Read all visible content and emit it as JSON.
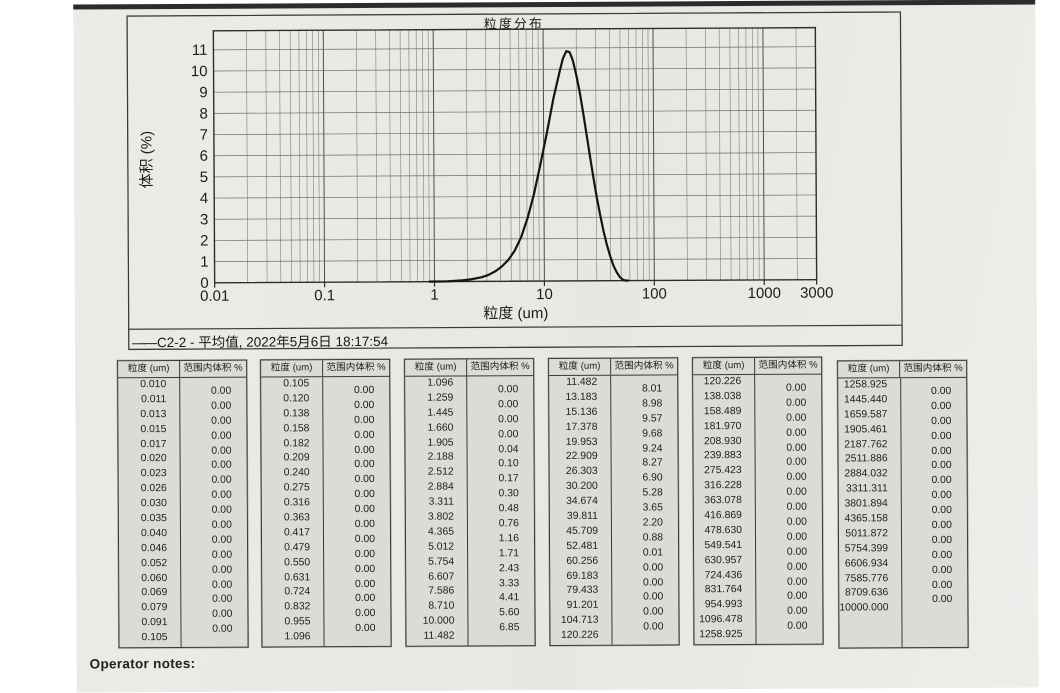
{
  "page": {
    "operator_notes_label": "Operator notes:"
  },
  "chart_data": {
    "type": "line",
    "title": "粒度分布",
    "xlabel": "粒度 (um)",
    "ylabel": "体积 (%)",
    "x_scale": "log",
    "xlim": [
      0.01,
      3000
    ],
    "ylim": [
      0,
      11.9
    ],
    "x_tick_labels": [
      "0.01",
      "0.1",
      "1",
      "10",
      "100",
      "1000",
      "3000"
    ],
    "y_ticks": [
      0,
      1,
      2,
      3,
      4,
      5,
      6,
      7,
      8,
      9,
      10,
      11
    ],
    "grid": "log-minor vertical + integer horizontal",
    "legend_dash": "——",
    "legend_text": "C2-2 - 平均值, 2022年5月6日 18:17:54",
    "series": [
      {
        "name": "C2-2 - 平均值",
        "points": [
          [
            0.9,
            0
          ],
          [
            1.3,
            0.01
          ],
          [
            1.8,
            0.05
          ],
          [
            2.2,
            0.11
          ],
          [
            2.7,
            0.2
          ],
          [
            3.1,
            0.3
          ],
          [
            3.6,
            0.48
          ],
          [
            4.1,
            0.7
          ],
          [
            4.7,
            1.0
          ],
          [
            5.4,
            1.45
          ],
          [
            6.2,
            2.1
          ],
          [
            7.1,
            3.0
          ],
          [
            8.1,
            4.1
          ],
          [
            9.3,
            5.5
          ],
          [
            10.7,
            7.0
          ],
          [
            12.3,
            8.6
          ],
          [
            14.1,
            9.9
          ],
          [
            15.1,
            10.5
          ],
          [
            16.2,
            10.85
          ],
          [
            17.4,
            10.8
          ],
          [
            18.6,
            10.4
          ],
          [
            20,
            9.7
          ],
          [
            21.4,
            8.9
          ],
          [
            23,
            7.9
          ],
          [
            24.6,
            6.9
          ],
          [
            26.3,
            5.9
          ],
          [
            28.2,
            4.9
          ],
          [
            30.2,
            3.95
          ],
          [
            32.4,
            3.1
          ],
          [
            34.7,
            2.35
          ],
          [
            37.2,
            1.7
          ],
          [
            39.8,
            1.15
          ],
          [
            42.7,
            0.7
          ],
          [
            45.7,
            0.38
          ],
          [
            49,
            0.15
          ],
          [
            52,
            0.04
          ],
          [
            55,
            0.005
          ],
          [
            58,
            0
          ]
        ]
      }
    ]
  },
  "tables": {
    "size_header": "粒度 (um)",
    "volume_header": "范围内体积 %",
    "columns": [
      {
        "sizes": [
          "0.010",
          "0.011",
          "0.013",
          "0.015",
          "0.017",
          "0.020",
          "0.023",
          "0.026",
          "0.030",
          "0.035",
          "0.040",
          "0.046",
          "0.052",
          "0.060",
          "0.069",
          "0.079",
          "0.091",
          "0.105"
        ],
        "values": [
          "0.00",
          "0.00",
          "0.00",
          "0.00",
          "0.00",
          "0.00",
          "0.00",
          "0.00",
          "0.00",
          "0.00",
          "0.00",
          "0.00",
          "0.00",
          "0.00",
          "0.00",
          "0.00",
          "0.00"
        ]
      },
      {
        "sizes": [
          "0.105",
          "0.120",
          "0.138",
          "0.158",
          "0.182",
          "0.209",
          "0.240",
          "0.275",
          "0.316",
          "0.363",
          "0.417",
          "0.479",
          "0.550",
          "0.631",
          "0.724",
          "0.832",
          "0.955",
          "1.096"
        ],
        "values": [
          "0.00",
          "0.00",
          "0.00",
          "0.00",
          "0.00",
          "0.00",
          "0.00",
          "0.00",
          "0.00",
          "0.00",
          "0.00",
          "0.00",
          "0.00",
          "0.00",
          "0.00",
          "0.00",
          "0.00"
        ]
      },
      {
        "sizes": [
          "1.096",
          "1.259",
          "1.445",
          "1.660",
          "1.905",
          "2.188",
          "2.512",
          "2.884",
          "3.311",
          "3.802",
          "4.365",
          "5.012",
          "5.754",
          "6.607",
          "7.586",
          "8.710",
          "10.000",
          "11.482"
        ],
        "values": [
          "0.00",
          "0.00",
          "0.00",
          "0.00",
          "0.04",
          "0.10",
          "0.17",
          "0.30",
          "0.48",
          "0.76",
          "1.16",
          "1.71",
          "2.43",
          "3.33",
          "4.41",
          "5.60",
          "6.85"
        ]
      },
      {
        "sizes": [
          "11.482",
          "13.183",
          "15.136",
          "17.378",
          "19.953",
          "22.909",
          "26.303",
          "30.200",
          "34.674",
          "39.811",
          "45.709",
          "52.481",
          "60.256",
          "69.183",
          "79.433",
          "91.201",
          "104.713",
          "120.226"
        ],
        "values": [
          "8.01",
          "8.98",
          "9.57",
          "9.68",
          "9.24",
          "8.27",
          "6.90",
          "5.28",
          "3.65",
          "2.20",
          "0.88",
          "0.01",
          "0.00",
          "0.00",
          "0.00",
          "0.00",
          "0.00"
        ]
      },
      {
        "sizes": [
          "120.226",
          "138.038",
          "158.489",
          "181.970",
          "208.930",
          "239.883",
          "275.423",
          "316.228",
          "363.078",
          "416.869",
          "478.630",
          "549.541",
          "630.957",
          "724.436",
          "831.764",
          "954.993",
          "1096.478",
          "1258.925"
        ],
        "values": [
          "0.00",
          "0.00",
          "0.00",
          "0.00",
          "0.00",
          "0.00",
          "0.00",
          "0.00",
          "0.00",
          "0.00",
          "0.00",
          "0.00",
          "0.00",
          "0.00",
          "0.00",
          "0.00",
          "0.00"
        ]
      },
      {
        "sizes": [
          "1258.925",
          "1445.440",
          "1659.587",
          "1905.461",
          "2187.762",
          "2511.886",
          "2884.032",
          "3311.311",
          "3801.894",
          "4365.158",
          "5011.872",
          "5754.399",
          "6606.934",
          "7585.776",
          "8709.636",
          "10000.000"
        ],
        "values": [
          "0.00",
          "0.00",
          "0.00",
          "0.00",
          "0.00",
          "0.00",
          "0.00",
          "0.00",
          "0.00",
          "0.00",
          "0.00",
          "0.00",
          "0.00",
          "0.00",
          "0.00"
        ]
      }
    ]
  }
}
